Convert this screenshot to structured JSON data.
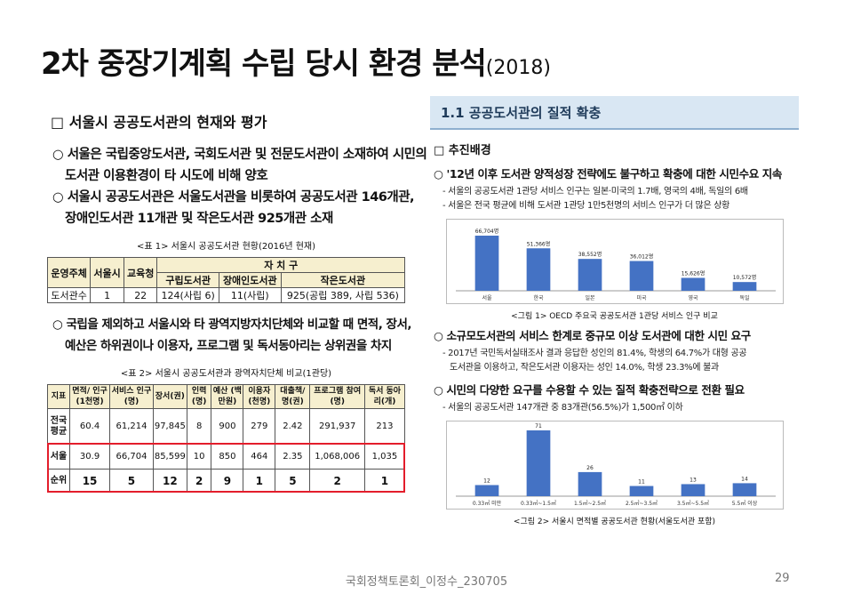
{
  "title": {
    "main": "2차 중장기계획 수립 당시 환경 분석",
    "year": "(2018)"
  },
  "left": {
    "heading": "□ 서울시 공공도서관의 현재와 평가",
    "bullets": [
      {
        "line1": "○ 서울은 국립중앙도서관, 국회도서관 및 전문도서관이 소재하여 시민의",
        "line2": "도서관 이용환경이 타 시도에 비해 양호"
      },
      {
        "line1": "○ 서울시 공공도서관은 서울도서관을 비롯하여 공공도서관 146개관,",
        "line2": "장애인도서관 11개관 및 작은도서관 925개관 소재"
      }
    ],
    "table1_caption": "<표 1> 서울시 공공도서관 현황(2016년 현재)",
    "table1": {
      "h_operator": "운영주체",
      "h_city": "서울시",
      "h_edu": "교육청",
      "h_district": "자 치 구",
      "h_gu": "구립도서관",
      "h_disabled": "장애인도서관",
      "h_small": "작은도서관",
      "row": [
        "도서관수",
        "1",
        "22",
        "124(사립 6)",
        "11(사립)",
        "925(공립 389, 사립 536)"
      ]
    },
    "bullet3": {
      "line1": "○ 국립을 제외하고 서울시와 타 광역지방자치단체와 비교할 때 면적, 장서,",
      "line2": "예산은 하위권이나 이용자, 프로그램 및 독서동아리는 상위권을 차지"
    },
    "table2_caption": "<표 2> 서울시 공공도서관과 광역자치단체 비교(1관당)",
    "table2": {
      "headers": [
        "지표",
        "면적/ 인구(1천명)",
        "서비스 인구(명)",
        "장서(권)",
        "인력 (명)",
        "예산 (백만원)",
        "이용자 (천명)",
        "대출책/ 명(권)",
        "프로그램 참여(명)",
        "독서 동아리(개)"
      ],
      "rows": [
        [
          "전국 평균",
          "60.4",
          "61,214",
          "97,845",
          "8",
          "900",
          "279",
          "2.42",
          "291,937",
          "213"
        ],
        [
          "서울",
          "30.9",
          "66,704",
          "85,599",
          "10",
          "850",
          "464",
          "2.35",
          "1,068,006",
          "1,035"
        ],
        [
          "순위",
          "15",
          "5",
          "12",
          "2",
          "9",
          "1",
          "5",
          "2",
          "1"
        ]
      ]
    }
  },
  "right": {
    "band": "1.1 공공도서관의 질적 확충",
    "sub": "□ 추진배경",
    "bullet1": "○ '12년 이후 도서관 양적성장 전략에도 불구하고 확충에 대한 시민수요 지속",
    "dash1": "- 서울의 공공도서관 1관당 서비스 인구는 일본·미국의 1.7배, 영국의 4배, 독일의 6배",
    "dash2": "- 서울은 전국 평균에 비해 도서관 1관당 1만5천명의 서비스 인구가 더 많은 상황",
    "chart1_caption": "<그림 1> OECD 주요국 공공도서관 1관당 서비스 인구 비교",
    "bullet2": "○ 소규모도서관의 서비스 한계로 중규모 이상 도서관에 대한 시민 요구",
    "dash3a": "- 2017년 국민독서실태조사 결과 응답한 성인의 81.4%, 학생의 64.7%가 대형 공공",
    "dash3b": "도서관을 이용하고, 작은도서관 이용자는 성인 14.0%, 학생 23.3%에 불과",
    "bullet3": "○ 시민의 다양한 요구를 수용할 수 있는 질적 확충전략으로 전환 필요",
    "dash4": "- 서울의 공공도서관 147개관 중 83개관(56.5%)가 1,500㎡ 이하",
    "chart2_caption": "<그림 2> 서울시 면적별 공공도서관 현황(서울도서관 포함)"
  },
  "chart_data": [
    {
      "type": "bar",
      "title": "OECD 주요국 공공도서관 1관당 서비스 인구 비교",
      "categories": [
        "서울",
        "한국",
        "일본",
        "미국",
        "영국",
        "독일"
      ],
      "values": [
        66704,
        51366,
        38552,
        36012,
        15626,
        10572
      ],
      "value_labels": [
        "66,704명",
        "51,366명",
        "38,552명",
        "36,012명",
        "15,626명",
        "10,572명"
      ],
      "color": "#4472c4"
    },
    {
      "type": "bar",
      "title": "서울시 면적별 공공도서관 현황(서울도서관 포함)",
      "categories": [
        "0.33㎡ 미만",
        "0.33㎡~1.5㎡",
        "1.5㎡~2.5㎡",
        "2.5㎡~3.5㎡",
        "3.5㎡~5.5㎡",
        "5.5㎡ 이상"
      ],
      "values": [
        12,
        71,
        26,
        11,
        13,
        14
      ],
      "value_labels": [
        "12",
        "71",
        "26",
        "11",
        "13",
        "14"
      ],
      "color": "#4472c4"
    }
  ],
  "footer": {
    "source": "국회정책토론회_이정수_230705",
    "page": "29"
  }
}
